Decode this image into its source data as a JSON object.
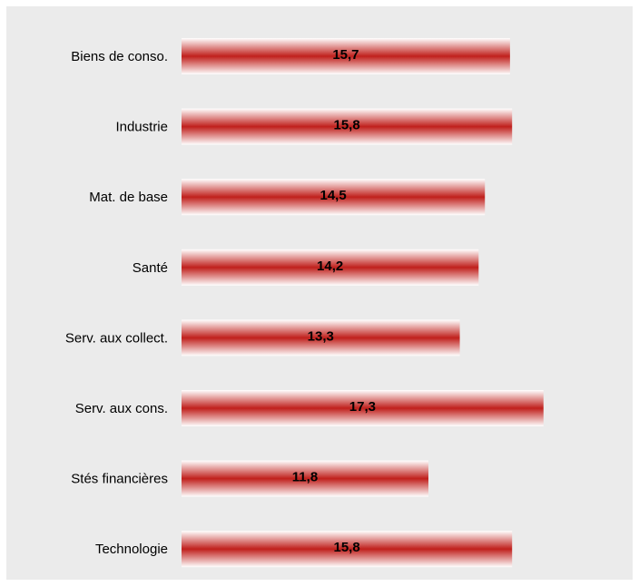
{
  "chart_data": {
    "type": "bar",
    "orientation": "horizontal",
    "categories": [
      "Biens de conso.",
      "Industrie",
      "Mat. de base",
      "Santé",
      "Serv. aux collect.",
      "Serv. aux cons.",
      "Stés financières",
      "Technologie"
    ],
    "values": [
      15.7,
      15.8,
      14.5,
      14.2,
      13.3,
      17.3,
      11.8,
      15.8
    ],
    "value_labels": [
      "15,7",
      "15,8",
      "14,5",
      "14,2",
      "13,3",
      "17,3",
      "11,8",
      "15,8"
    ],
    "title": "",
    "xlabel": "",
    "ylabel": "",
    "xlim": [
      0,
      17.3
    ],
    "grid": false,
    "legend": "none",
    "bar_color": "#c0201c",
    "bar_highlight": "#ffffff",
    "background": "#ebebeb"
  }
}
